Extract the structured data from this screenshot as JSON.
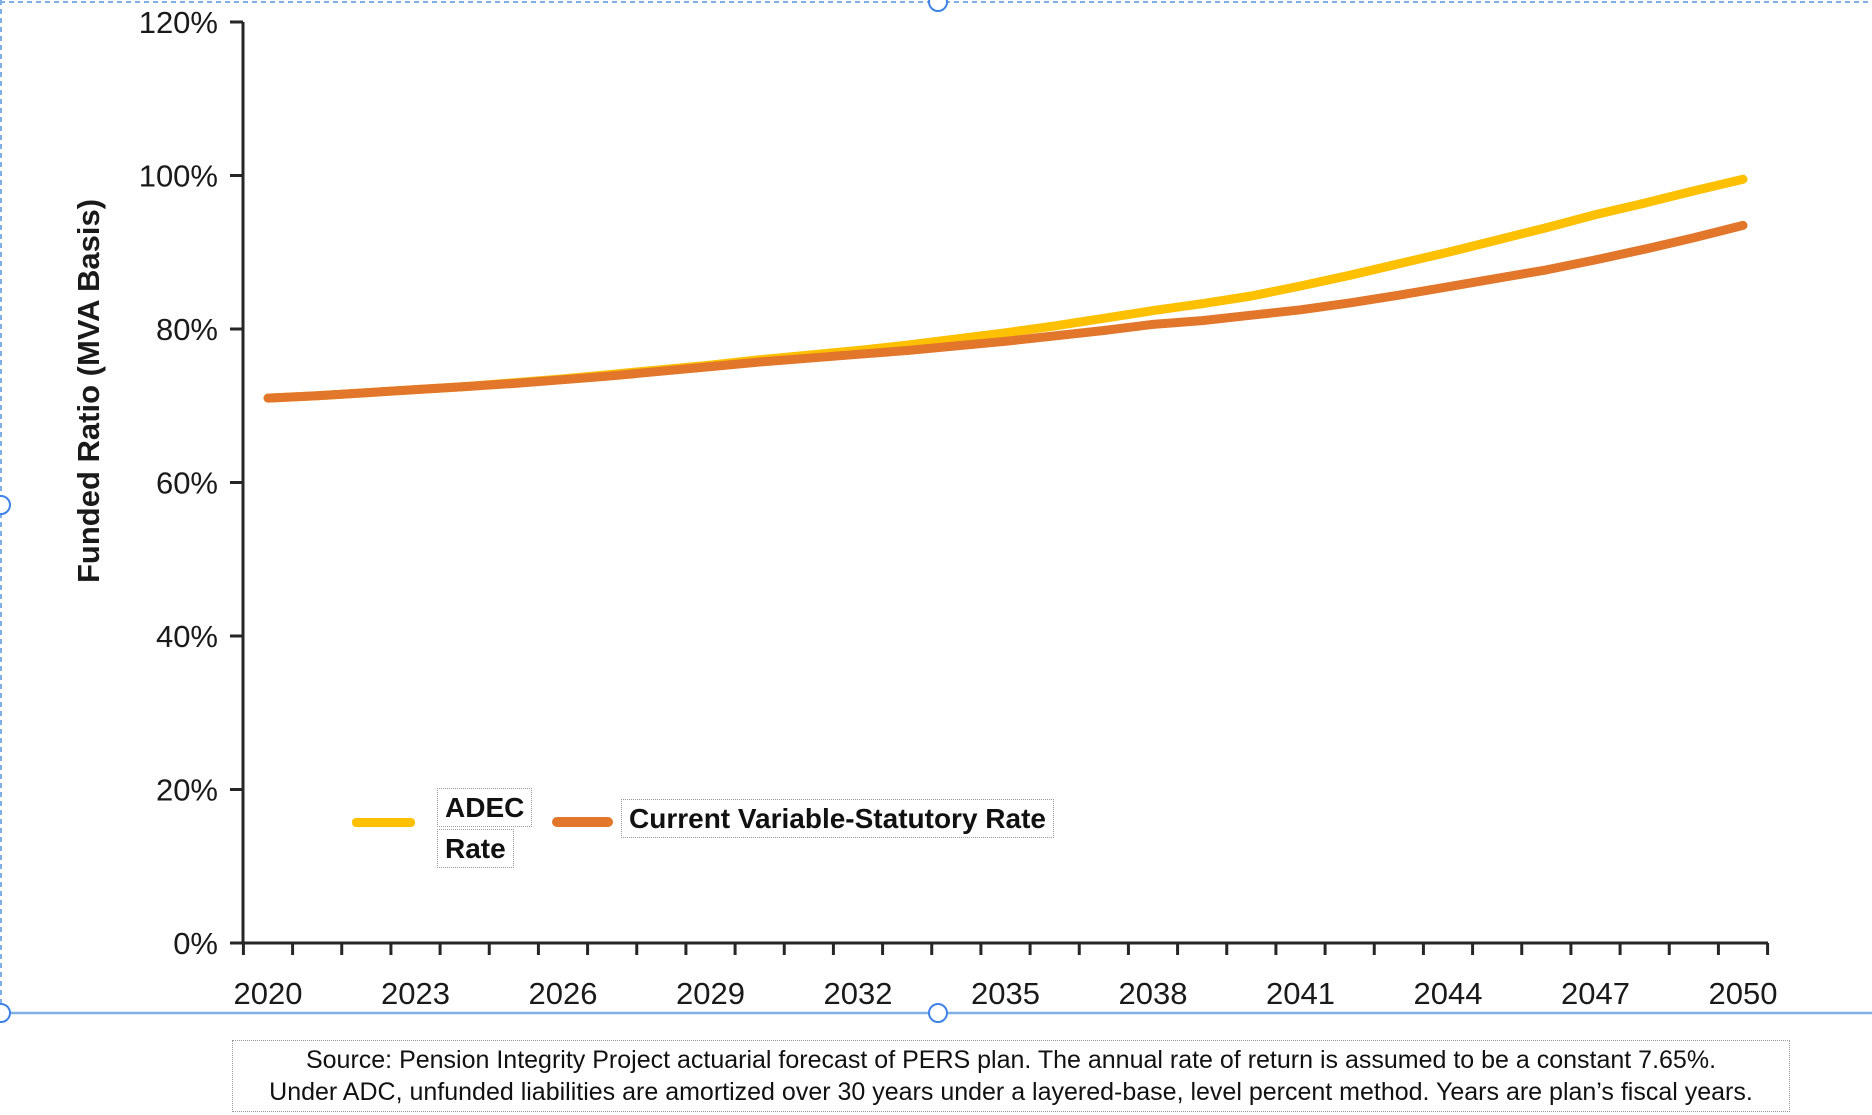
{
  "chart_data": {
    "type": "line",
    "title": "",
    "xlabel": "",
    "ylabel": "Funded Ratio (MVA Basis)",
    "ylim": [
      0,
      120
    ],
    "ytick_step": 20,
    "ytick_labels": [
      "0%",
      "20%",
      "40%",
      "60%",
      "80%",
      "100%",
      "120%"
    ],
    "xtick_label_years": [
      2020,
      2023,
      2026,
      2029,
      2032,
      2035,
      2038,
      2041,
      2044,
      2047,
      2050
    ],
    "years": [
      2020,
      2021,
      2022,
      2023,
      2024,
      2025,
      2026,
      2027,
      2028,
      2029,
      2030,
      2031,
      2032,
      2033,
      2034,
      2035,
      2036,
      2037,
      2038,
      2039,
      2040,
      2041,
      2042,
      2043,
      2044,
      2045,
      2046,
      2047,
      2048,
      2049,
      2050
    ],
    "grid": false,
    "legend_position": "inside-bottom-left",
    "series": [
      {
        "name": "ADEC Rate",
        "color": "#FFC000",
        "values": [
          71.0,
          71.3,
          71.7,
          72.1,
          72.5,
          73.0,
          73.5,
          74.1,
          74.7,
          75.3,
          76.0,
          76.6,
          77.2,
          77.9,
          78.7,
          79.5,
          80.4,
          81.4,
          82.4,
          83.3,
          84.3,
          85.6,
          87.0,
          88.5,
          90.0,
          91.6,
          93.2,
          94.9,
          96.4,
          98.0,
          99.5
        ]
      },
      {
        "name": "Current Variable-Statutory Rate",
        "color": "#E2762B",
        "values": [
          71.0,
          71.3,
          71.7,
          72.1,
          72.5,
          72.9,
          73.4,
          73.9,
          74.5,
          75.1,
          75.7,
          76.2,
          76.7,
          77.2,
          77.8,
          78.4,
          79.1,
          79.8,
          80.6,
          81.1,
          81.8,
          82.5,
          83.4,
          84.4,
          85.5,
          86.6,
          87.7,
          89.0,
          90.4,
          91.9,
          93.5
        ]
      }
    ]
  },
  "legend": {
    "adec_line1": "ADEC",
    "adec_line2": "Rate",
    "statutory_label": "Current Variable-Statutory Rate"
  },
  "source_note": {
    "line1": "Source: Pension Integrity Project actuarial forecast of PERS plan. The annual rate of return is assumed to be a constant 7.65%.",
    "line2": "Under ADC, unfunded liabilities are amortized over 30 years under a layered-base, level percent method. Years are plan’s fiscal years."
  },
  "selection": {
    "border_color": "#7FB0E5",
    "handle_stroke": "#3F83E8",
    "handle_fill": "#ffffff"
  }
}
